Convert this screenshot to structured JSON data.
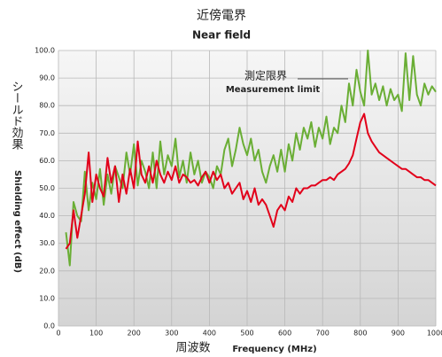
{
  "chart_data": {
    "type": "line",
    "title": "近傍電界",
    "subtitle": "Near field",
    "y_label": "シールド効果",
    "y_label_en": "Shielding effect (dB)",
    "x_label": "周波数",
    "x_label_en": "Frequency (MHz)",
    "annotations": [
      "測定限界",
      "Measurement limit"
    ],
    "x": [
      20,
      30,
      40,
      50,
      60,
      70,
      80,
      90,
      100,
      110,
      120,
      130,
      140,
      150,
      160,
      170,
      180,
      190,
      200,
      210,
      220,
      230,
      240,
      250,
      260,
      270,
      280,
      290,
      300,
      310,
      320,
      330,
      340,
      350,
      360,
      370,
      380,
      390,
      400,
      410,
      420,
      430,
      440,
      450,
      460,
      470,
      480,
      490,
      500,
      510,
      520,
      530,
      540,
      550,
      560,
      570,
      580,
      590,
      600,
      610,
      620,
      630,
      640,
      650,
      660,
      670,
      680,
      690,
      700,
      710,
      720,
      730,
      740,
      750,
      760,
      770,
      780,
      790,
      800,
      810,
      820,
      830,
      840,
      850,
      860,
      870,
      880,
      890,
      900,
      910,
      920,
      930,
      940,
      950,
      960,
      970,
      980,
      990,
      1000
    ],
    "series": [
      {
        "color": "#6aae35",
        "values": [
          34,
          22,
          45,
          40,
          38,
          56,
          42,
          52,
          46,
          57,
          44,
          55,
          48,
          58,
          54,
          50,
          63,
          55,
          66,
          51,
          60,
          56,
          50,
          63,
          50,
          67,
          55,
          62,
          58,
          68,
          54,
          60,
          52,
          63,
          55,
          60,
          52,
          56,
          54,
          50,
          58,
          55,
          64,
          68,
          58,
          64,
          72,
          66,
          62,
          68,
          60,
          64,
          56,
          52,
          58,
          62,
          56,
          64,
          56,
          66,
          60,
          70,
          64,
          72,
          68,
          74,
          65,
          72,
          68,
          76,
          66,
          72,
          70,
          80,
          74,
          88,
          80,
          93,
          85,
          80,
          100,
          84,
          88,
          82,
          87,
          80,
          86,
          82,
          84,
          78,
          99,
          82,
          98,
          84,
          80,
          88,
          84,
          87,
          85
        ]
      },
      {
        "color": "#e2001a",
        "values": [
          28,
          30,
          42,
          32,
          40,
          48,
          63,
          45,
          55,
          50,
          47,
          61,
          52,
          58,
          45,
          55,
          48,
          57,
          50,
          67,
          55,
          52,
          58,
          52,
          60,
          55,
          52,
          56,
          53,
          58,
          52,
          55,
          54,
          52,
          53,
          51,
          54,
          56,
          52,
          56,
          53,
          55,
          50,
          52,
          48,
          50,
          52,
          46,
          49,
          45,
          50,
          44,
          46,
          44,
          40,
          36,
          42,
          44,
          42,
          47,
          45,
          50,
          48,
          50,
          50,
          51,
          51,
          52,
          53,
          53,
          54,
          53,
          55,
          56,
          57,
          59,
          62,
          68,
          74,
          77,
          70,
          67,
          65,
          63,
          62,
          61,
          60,
          59,
          58,
          57,
          57,
          56,
          55,
          54,
          54,
          53,
          53,
          52,
          51
        ]
      }
    ],
    "xlim": [
      0,
      1000
    ],
    "xticks": [
      0,
      100,
      200,
      300,
      400,
      500,
      600,
      700,
      800,
      900,
      1000
    ],
    "ylim": [
      0,
      100
    ],
    "yticks": [
      {
        "value": 0,
        "label": "0.0"
      },
      {
        "value": 10,
        "label": "10.0"
      },
      {
        "value": 20,
        "label": "20.0"
      },
      {
        "value": 30,
        "label": "30.0"
      },
      {
        "value": 40,
        "label": "40.0"
      },
      {
        "value": 50,
        "label": "50.0"
      },
      {
        "value": 60,
        "label": "60.0"
      },
      {
        "value": 70,
        "label": "70.0"
      },
      {
        "value": 80,
        "label": "80.0"
      },
      {
        "value": 90,
        "label": "90.0"
      },
      {
        "value": 100,
        "label": "100.0"
      }
    ],
    "grid": true
  }
}
